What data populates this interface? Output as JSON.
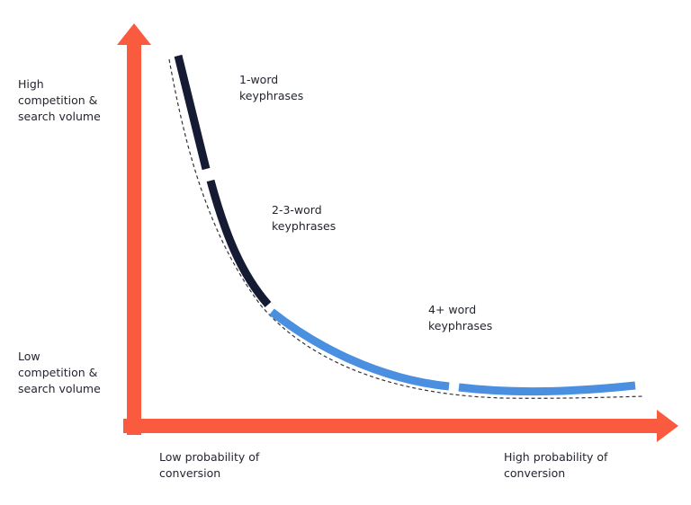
{
  "axes": {
    "y_high": [
      "High",
      "competition &",
      "search volume"
    ],
    "y_low": [
      "Low",
      "competition &",
      "search volume"
    ],
    "x_low": [
      "Low probability of",
      "conversion"
    ],
    "x_high": [
      "High probability of",
      "conversion"
    ]
  },
  "segments": [
    {
      "label": [
        "1-word",
        "keyphrases"
      ]
    },
    {
      "label": [
        "2-3-word",
        "keyphrases"
      ]
    },
    {
      "label": [
        "4+ word",
        "keyphrases"
      ]
    }
  ]
}
